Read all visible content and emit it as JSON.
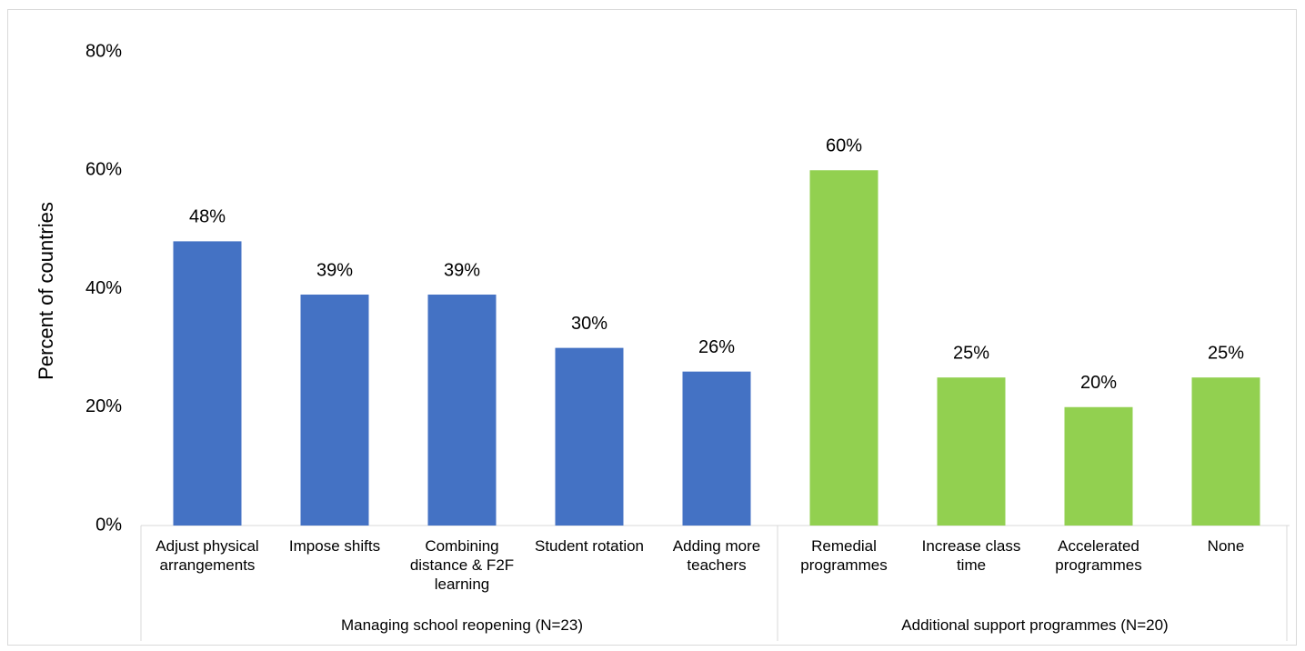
{
  "chart_data": {
    "type": "bar",
    "y_label": "Percent of countries",
    "ylim": [
      0,
      80
    ],
    "yticks": [
      {
        "value": 0,
        "label": "0%"
      },
      {
        "value": 20,
        "label": "20%"
      },
      {
        "value": 40,
        "label": "40%"
      },
      {
        "value": 60,
        "label": "60%"
      },
      {
        "value": 80,
        "label": "80%"
      }
    ],
    "grid": false,
    "series": [
      {
        "name": "Managing school reopening (N=23)",
        "color": "#4472c4",
        "categories": [
          "Adjust physical arrangements",
          "Impose shifts",
          "Combining distance & F2F learning",
          "Student rotation",
          "Adding more teachers"
        ],
        "values": [
          48,
          39,
          39,
          30,
          26
        ],
        "value_labels": [
          "48%",
          "39%",
          "39%",
          "30%",
          "26%"
        ]
      },
      {
        "name": "Additional support programmes (N=20)",
        "color": "#92d050",
        "categories": [
          "Remedial programmes",
          "Increase class time",
          "Accelerated programmes",
          "None"
        ],
        "values": [
          60,
          25,
          20,
          25
        ],
        "value_labels": [
          "60%",
          "25%",
          "20%",
          "25%"
        ]
      }
    ]
  }
}
